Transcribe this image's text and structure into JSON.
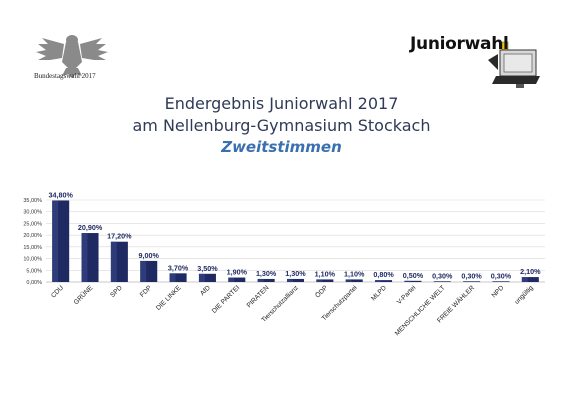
{
  "header": {
    "left_logo_caption": "Bundestagswahl 2017",
    "right_logo_text": "Juniorwahl"
  },
  "title": {
    "line1": "Endergebnis Juniorwahl 2017",
    "line2": "am Nellenburg-Gymnasium Stockach",
    "line3": "Zweitstimmen"
  },
  "colors": {
    "bar": "#1f2a63",
    "title": "#2e3a56",
    "subtitle": "#3a6fb0",
    "grid": "#d9d9d9"
  },
  "chart_data": {
    "type": "bar",
    "categories": [
      "CDU",
      "GRÜNE",
      "SPD",
      "FDP",
      "DIE LINKE",
      "AfD",
      "DIE PARTEI",
      "PIRATEN",
      "Tierschutzallianz",
      "ÖDP",
      "Tierschutzpartei",
      "MLPD",
      "V-Partei",
      "MENSCHLICHE WELT",
      "FREIE WÄHLER",
      "NPD",
      "ungültig"
    ],
    "values": [
      34.8,
      20.9,
      17.2,
      9.0,
      3.7,
      3.5,
      1.9,
      1.3,
      1.3,
      1.1,
      1.1,
      0.8,
      0.5,
      0.3,
      0.3,
      0.3,
      2.1
    ],
    "data_labels": [
      "34,80%",
      "20,90%",
      "17,20%",
      "9,00%",
      "3,70%",
      "3,50%",
      "1,90%",
      "1,30%",
      "1,30%",
      "1,10%",
      "1,10%",
      "0,80%",
      "0,50%",
      "0,30%",
      "0,30%",
      "0,30%",
      "2,10%"
    ],
    "y_ticks": [
      "0,00%",
      "5,00%",
      "10,00%",
      "15,00%",
      "20,00%",
      "25,00%",
      "30,00%",
      "35,00%"
    ],
    "ylim": [
      0,
      35
    ],
    "grid": true
  }
}
